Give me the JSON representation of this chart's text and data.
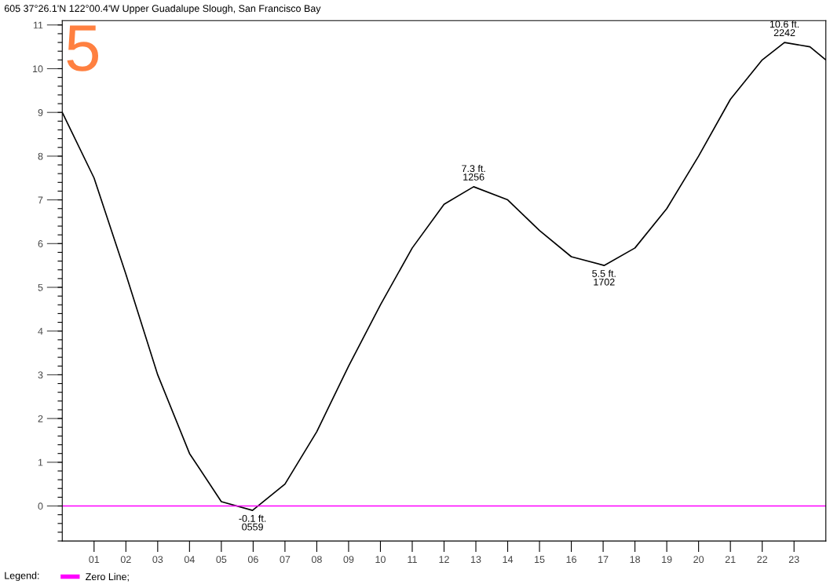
{
  "chart_data": {
    "type": "line",
    "title": "605 37°26.1'N 122°00.4'W Upper Guadalupe Slough, San Francisco Bay",
    "x": [
      0,
      1,
      2,
      3,
      4,
      5,
      5.98,
      7,
      8,
      9,
      10,
      11,
      12,
      12.93,
      14,
      15,
      16,
      17.03,
      18,
      19,
      20,
      21,
      22,
      22.7,
      23.5,
      24
    ],
    "series": [
      {
        "color": "#000000",
        "values": [
          9.0,
          7.5,
          5.3,
          3.0,
          1.2,
          0.1,
          -0.1,
          0.5,
          1.7,
          3.2,
          4.6,
          5.9,
          6.9,
          7.3,
          7.0,
          6.3,
          5.7,
          5.5,
          5.9,
          6.8,
          8.0,
          9.3,
          10.2,
          10.6,
          10.5,
          10.2
        ]
      }
    ],
    "xlim": [
      0,
      24
    ],
    "xticks": [
      {
        "value": 1,
        "label": "01"
      },
      {
        "value": 2,
        "label": "02"
      },
      {
        "value": 3,
        "label": "03"
      },
      {
        "value": 4,
        "label": "04"
      },
      {
        "value": 5,
        "label": "05"
      },
      {
        "value": 6,
        "label": "06"
      },
      {
        "value": 7,
        "label": "07"
      },
      {
        "value": 8,
        "label": "08"
      },
      {
        "value": 9,
        "label": "09"
      },
      {
        "value": 10,
        "label": "10"
      },
      {
        "value": 11,
        "label": "11"
      },
      {
        "value": 12,
        "label": "12"
      },
      {
        "value": 13,
        "label": "13"
      },
      {
        "value": 14,
        "label": "14"
      },
      {
        "value": 15,
        "label": "15"
      },
      {
        "value": 16,
        "label": "16"
      },
      {
        "value": 17,
        "label": "17"
      },
      {
        "value": 18,
        "label": "18"
      },
      {
        "value": 19,
        "label": "19"
      },
      {
        "value": 20,
        "label": "20"
      },
      {
        "value": 21,
        "label": "21"
      },
      {
        "value": 22,
        "label": "22"
      },
      {
        "value": 23,
        "label": "23"
      }
    ],
    "ylim": [
      -0.8,
      11.1
    ],
    "yticks": [
      0,
      1,
      2,
      3,
      4,
      5,
      6,
      7,
      8,
      9,
      10,
      11
    ],
    "ref_lines": [
      {
        "axis": "y",
        "value": 0,
        "label": "Zero Line;",
        "color": "#ff00ff"
      }
    ],
    "legend_title": "Legend:",
    "grid": false,
    "annotations": [
      "5",
      {
        "text": "-0.1 ft.\n0559",
        "x": 5.98,
        "y": -0.1
      },
      {
        "text": "7.3 ft.\n1256",
        "x": 12.93,
        "y": 7.3
      },
      {
        "text": "5.5 ft.\n1702",
        "x": 17.03,
        "y": 5.5
      },
      {
        "text": "10.6 ft.\n2242",
        "x": 22.7,
        "y": 10.6
      }
    ]
  }
}
